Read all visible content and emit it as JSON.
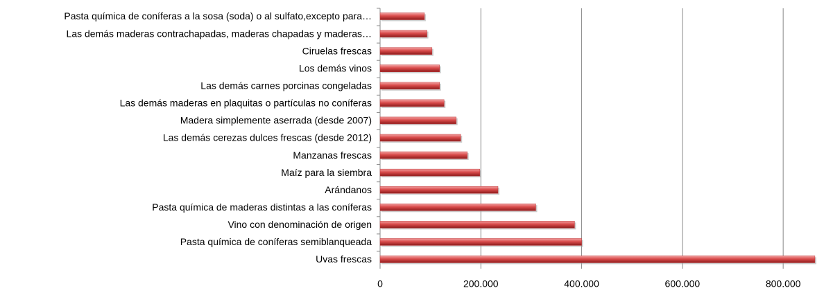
{
  "chart_data": {
    "type": "bar",
    "orientation": "horizontal",
    "categories": [
      "Pasta química de coníferas a la sosa (soda) o al sulfato,excepto para…",
      "Las demás maderas contrachapadas, maderas chapadas y maderas…",
      "Ciruelas frescas",
      "Los demás vinos",
      "Las demás carnes porcinas congeladas",
      "Las demás maderas en plaquitas o partículas no coníferas",
      "Madera simplemente aserrada (desde 2007)",
      "Las demás cerezas dulces frescas (desde 2012)",
      "Manzanas frescas",
      "Maíz para la siembra",
      "Arándanos",
      "Pasta química de maderas distintas a las coníferas",
      "Vino con denominación de origen",
      "Pasta química de coníferas  semiblanqueada",
      "Uvas frescas"
    ],
    "values": [
      88000,
      93000,
      103000,
      118000,
      118000,
      127000,
      151000,
      160000,
      173000,
      198000,
      234000,
      309000,
      386000,
      400000,
      863000
    ],
    "color": "#c0393b",
    "xlim": [
      0,
      870000
    ],
    "xticks": [
      0,
      {
        "value": 200000,
        "label": "200.000"
      },
      {
        "value": 400000,
        "label": "400.000"
      },
      {
        "value": 600000,
        "label": "600.000"
      },
      {
        "value": 800000,
        "label": "800.000"
      }
    ],
    "grid": true
  }
}
